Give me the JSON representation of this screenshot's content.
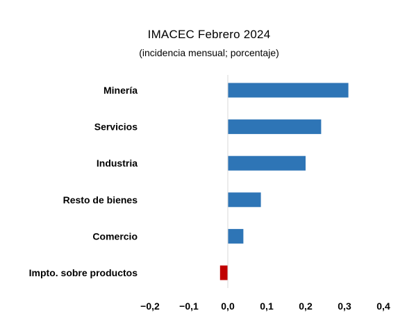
{
  "chart_data": {
    "type": "bar",
    "orientation": "horizontal",
    "title": "IMACEC Febrero 2024",
    "subtitle": "(incidencia mensual; porcentaje)",
    "categories": [
      "Minería",
      "Servicios",
      "Industria",
      "Resto de bienes",
      "Comercio",
      "Impto. sobre productos"
    ],
    "values": [
      0.31,
      0.24,
      0.2,
      0.085,
      0.04,
      -0.02
    ],
    "xlim": [
      -0.2,
      0.4
    ],
    "xticks": [
      -0.2,
      -0.1,
      0.0,
      0.1,
      0.2,
      0.3,
      0.4
    ],
    "xtick_labels": [
      "−0,2",
      "−0,1",
      "0,0",
      "0,1",
      "0,2",
      "0,3",
      "0,4"
    ],
    "grid": false,
    "colors": {
      "positive": "#2e75b6",
      "negative": "#c00000",
      "axis": "#d9d9d9"
    }
  }
}
